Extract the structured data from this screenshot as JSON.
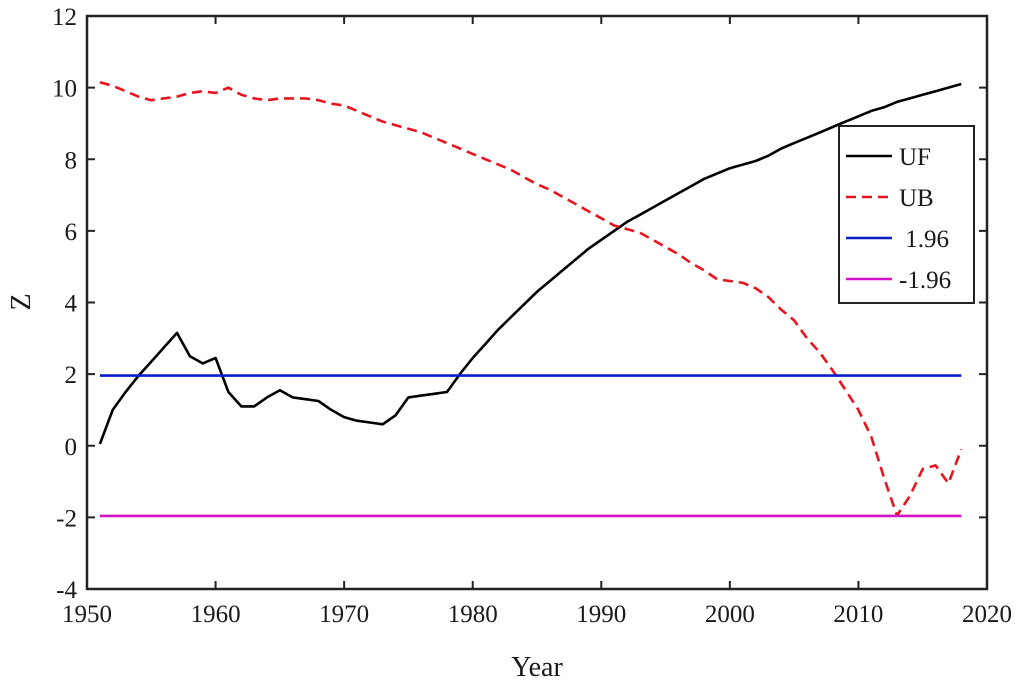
{
  "chart_data": {
    "type": "line",
    "title": "",
    "xlabel": "Year",
    "ylabel": "Z",
    "xlim": [
      1950,
      2020
    ],
    "ylim": [
      -4,
      12
    ],
    "xticks": [
      1950,
      1960,
      1970,
      1980,
      1990,
      2000,
      2010,
      2020
    ],
    "yticks": [
      -4,
      -2,
      0,
      2,
      4,
      6,
      8,
      10,
      12
    ],
    "grid": false,
    "legend_position": "top-right",
    "series": [
      {
        "name": "UF",
        "color": "#000000",
        "style": "solid",
        "x": [
          1951,
          1952,
          1953,
          1954,
          1955,
          1956,
          1957,
          1958,
          1959,
          1960,
          1961,
          1962,
          1963,
          1964,
          1965,
          1966,
          1967,
          1968,
          1969,
          1970,
          1971,
          1972,
          1973,
          1974,
          1975,
          1976,
          1977,
          1978,
          1979,
          1980,
          1981,
          1982,
          1983,
          1984,
          1985,
          1986,
          1987,
          1988,
          1989,
          1990,
          1991,
          1992,
          1993,
          1994,
          1995,
          1996,
          1997,
          1998,
          1999,
          2000,
          2001,
          2002,
          2003,
          2004,
          2005,
          2006,
          2007,
          2008,
          2009,
          2010,
          2011,
          2012,
          2013,
          2014,
          2015,
          2016,
          2017,
          2018
        ],
        "y": [
          0.05,
          1.0,
          1.5,
          1.95,
          2.35,
          2.75,
          3.15,
          2.5,
          2.3,
          2.45,
          1.5,
          1.1,
          1.1,
          1.35,
          1.55,
          1.35,
          1.3,
          1.25,
          1.0,
          0.8,
          0.7,
          0.65,
          0.6,
          0.85,
          1.35,
          1.4,
          1.45,
          1.5,
          2.0,
          2.45,
          2.85,
          3.25,
          3.6,
          3.95,
          4.3,
          4.6,
          4.9,
          5.2,
          5.5,
          5.75,
          6.0,
          6.25,
          6.45,
          6.65,
          6.85,
          7.05,
          7.25,
          7.45,
          7.6,
          7.75,
          7.85,
          7.95,
          8.1,
          8.3,
          8.45,
          8.6,
          8.75,
          8.9,
          9.05,
          9.2,
          9.35,
          9.45,
          9.6,
          9.7,
          9.8,
          9.9,
          10.0,
          10.1
        ]
      },
      {
        "name": "UB",
        "color": "#e8141e",
        "style": "dashed",
        "x": [
          1951,
          1952,
          1953,
          1954,
          1955,
          1956,
          1957,
          1958,
          1959,
          1960,
          1961,
          1962,
          1963,
          1964,
          1965,
          1966,
          1967,
          1968,
          1969,
          1970,
          1971,
          1972,
          1973,
          1974,
          1975,
          1976,
          1977,
          1978,
          1979,
          1980,
          1981,
          1982,
          1983,
          1984,
          1985,
          1986,
          1987,
          1988,
          1989,
          1990,
          1991,
          1992,
          1993,
          1994,
          1995,
          1996,
          1997,
          1998,
          1999,
          2000,
          2001,
          2002,
          2003,
          2004,
          2005,
          2006,
          2007,
          2008,
          2009,
          2010,
          2011,
          2012,
          2013,
          2014,
          2015,
          2016,
          2017,
          2018
        ],
        "y": [
          10.15,
          10.05,
          9.9,
          9.75,
          9.65,
          9.7,
          9.75,
          9.85,
          9.9,
          9.85,
          10.0,
          9.8,
          9.7,
          9.65,
          9.7,
          9.7,
          9.7,
          9.65,
          9.55,
          9.5,
          9.35,
          9.2,
          9.05,
          8.95,
          8.85,
          8.75,
          8.6,
          8.45,
          8.3,
          8.15,
          8.0,
          7.85,
          7.7,
          7.5,
          7.3,
          7.15,
          6.95,
          6.75,
          6.55,
          6.35,
          6.15,
          6.05,
          5.95,
          5.75,
          5.55,
          5.35,
          5.1,
          4.9,
          4.65,
          4.6,
          4.55,
          4.4,
          4.15,
          3.8,
          3.5,
          3.0,
          2.6,
          2.1,
          1.55,
          1.0,
          0.25,
          -0.9,
          -1.95,
          -1.4,
          -0.65,
          -0.55,
          -1.05,
          -0.1
        ]
      },
      {
        "name": " 1.96",
        "color": "#0a1ec8",
        "style": "solid",
        "x": [
          1951,
          2018
        ],
        "y": [
          1.96,
          1.96
        ]
      },
      {
        "name": "-1.96",
        "color": "#d214c8",
        "style": "solid",
        "x": [
          1951,
          2018
        ],
        "y": [
          -1.96,
          -1.96
        ]
      }
    ]
  }
}
